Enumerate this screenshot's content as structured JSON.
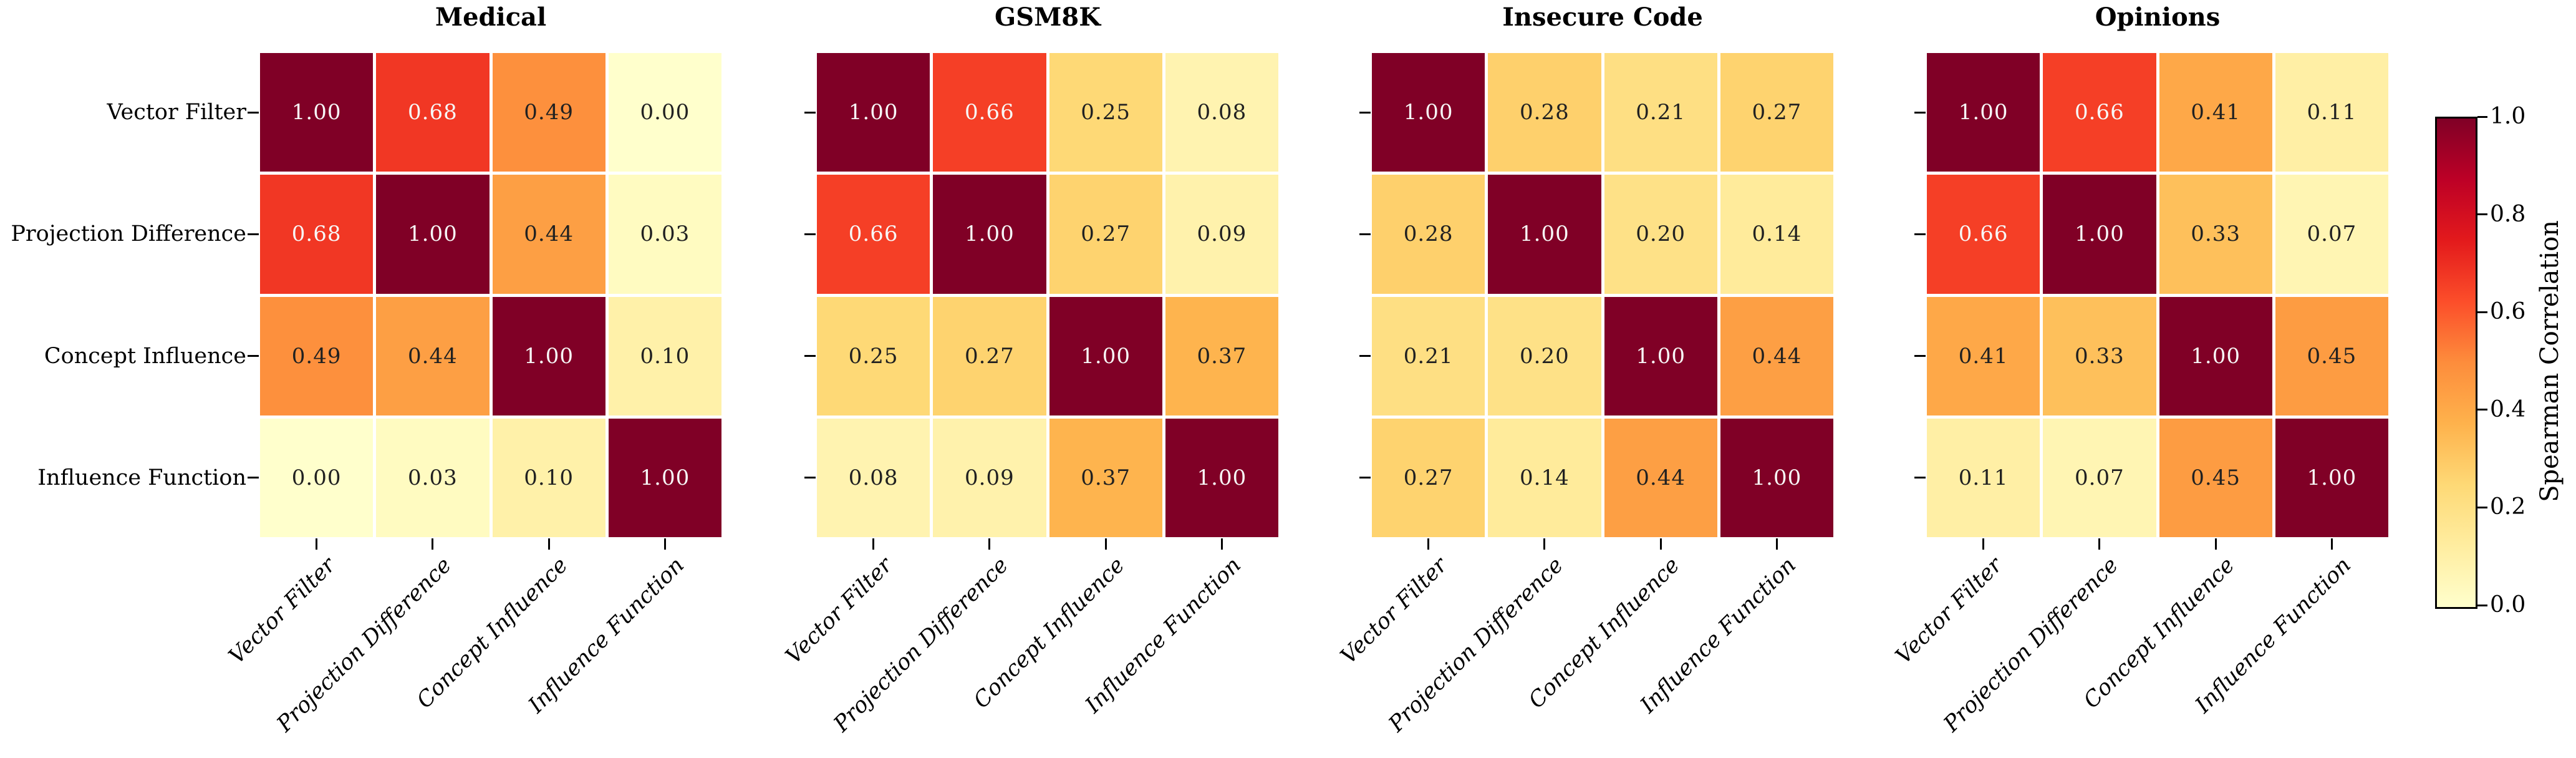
{
  "figure": {
    "background": "#ffffff",
    "tick_color": "#000000",
    "colormap": {
      "name": "YlOrRd",
      "anchors": [
        {
          "t": 0.0,
          "color": "#ffffcc"
        },
        {
          "t": 0.125,
          "color": "#ffeda0"
        },
        {
          "t": 0.25,
          "color": "#fed976"
        },
        {
          "t": 0.375,
          "color": "#feb24c"
        },
        {
          "t": 0.5,
          "color": "#fd8d3c"
        },
        {
          "t": 0.625,
          "color": "#fc4e2a"
        },
        {
          "t": 0.75,
          "color": "#e31a1c"
        },
        {
          "t": 0.875,
          "color": "#bd0026"
        },
        {
          "t": 1.0,
          "color": "#800026"
        }
      ],
      "light_text_threshold": 0.6,
      "text_light": "#f7f7f7",
      "text_dark": "#212121"
    }
  },
  "chart_data": [
    {
      "type": "heatmap",
      "title": "Medical",
      "x_labels": [
        "Vector Filter",
        "Projection Difference",
        "Concept Influence",
        "Influence Function"
      ],
      "y_labels": [
        "Vector Filter",
        "Projection Difference",
        "Concept Influence",
        "Influence Function"
      ],
      "values": [
        [
          1.0,
          0.68,
          0.49,
          0.0
        ],
        [
          0.68,
          1.0,
          0.44,
          0.03
        ],
        [
          0.49,
          0.44,
          1.0,
          0.1
        ],
        [
          0.0,
          0.03,
          0.1,
          1.0
        ]
      ],
      "vmin": 0.0,
      "vmax": 1.0,
      "annot_format": "2dp",
      "show_y_tick_labels": true
    },
    {
      "type": "heatmap",
      "title": "GSM8K",
      "x_labels": [
        "Vector Filter",
        "Projection Difference",
        "Concept Influence",
        "Influence Function"
      ],
      "y_labels": [
        "Vector Filter",
        "Projection Difference",
        "Concept Influence",
        "Influence Function"
      ],
      "values": [
        [
          1.0,
          0.66,
          0.25,
          0.08
        ],
        [
          0.66,
          1.0,
          0.27,
          0.09
        ],
        [
          0.25,
          0.27,
          1.0,
          0.37
        ],
        [
          0.08,
          0.09,
          0.37,
          1.0
        ]
      ],
      "vmin": 0.0,
      "vmax": 1.0,
      "annot_format": "2dp",
      "show_y_tick_labels": false
    },
    {
      "type": "heatmap",
      "title": "Insecure Code",
      "x_labels": [
        "Vector Filter",
        "Projection Difference",
        "Concept Influence",
        "Influence Function"
      ],
      "y_labels": [
        "Vector Filter",
        "Projection Difference",
        "Concept Influence",
        "Influence Function"
      ],
      "values": [
        [
          1.0,
          0.28,
          0.21,
          0.27
        ],
        [
          0.28,
          1.0,
          0.2,
          0.14
        ],
        [
          0.21,
          0.2,
          1.0,
          0.44
        ],
        [
          0.27,
          0.14,
          0.44,
          1.0
        ]
      ],
      "vmin": 0.0,
      "vmax": 1.0,
      "annot_format": "2dp",
      "show_y_tick_labels": false
    },
    {
      "type": "heatmap",
      "title": "Opinions",
      "x_labels": [
        "Vector Filter",
        "Projection Difference",
        "Concept Influence",
        "Influence Function"
      ],
      "y_labels": [
        "Vector Filter",
        "Projection Difference",
        "Concept Influence",
        "Influence Function"
      ],
      "values": [
        [
          1.0,
          0.66,
          0.41,
          0.11
        ],
        [
          0.66,
          1.0,
          0.33,
          0.07
        ],
        [
          0.41,
          0.33,
          1.0,
          0.45
        ],
        [
          0.11,
          0.07,
          0.45,
          1.0
        ]
      ],
      "vmin": 0.0,
      "vmax": 1.0,
      "annot_format": "2dp",
      "show_y_tick_labels": false
    }
  ],
  "colorbar": {
    "label": "Spearman Correlation",
    "tick_labels": [
      "0.0",
      "0.2",
      "0.4",
      "0.6",
      "0.8",
      "1.0"
    ],
    "orientation": "vertical"
  }
}
